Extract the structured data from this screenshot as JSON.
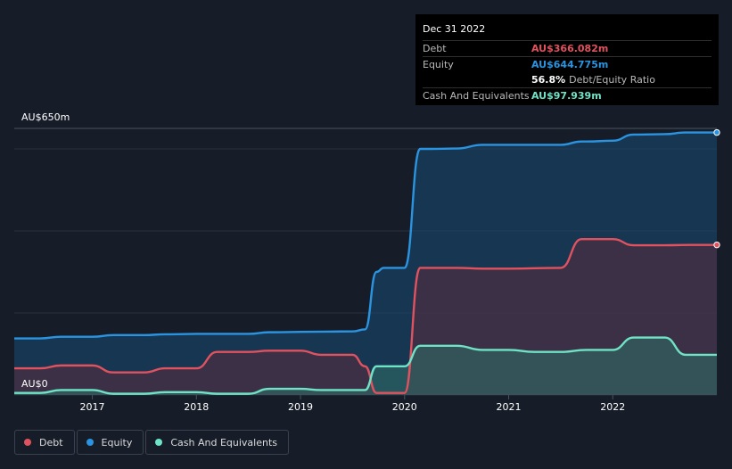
{
  "chart_data": {
    "type": "area",
    "y_axis": {
      "top_label": "AU$650m",
      "bottom_label": "AU$0",
      "ylim": [
        0,
        650
      ],
      "gridlines": [
        0,
        200,
        400,
        600,
        650
      ]
    },
    "x_ticks": [
      "2017",
      "2018",
      "2019",
      "2020",
      "2021",
      "2022"
    ],
    "x_tick_values": [
      2017.0,
      2018.0,
      2019.0,
      2020.0,
      2021.0,
      2022.0
    ],
    "xlim": [
      2016.25,
      2023.0
    ],
    "series": [
      {
        "name": "Equity",
        "color": "#2b94e0",
        "x": [
          2016.25,
          2016.5,
          2016.7,
          2016.75,
          2017.0,
          2017.2,
          2017.25,
          2017.5,
          2017.7,
          2017.75,
          2018.0,
          2018.5,
          2018.7,
          2018.75,
          2019.0,
          2019.5,
          2019.62,
          2019.73,
          2019.8,
          2020.0,
          2020.15,
          2020.25,
          2020.5,
          2020.75,
          2021.0,
          2021.5,
          2021.7,
          2021.75,
          2022.0,
          2022.2,
          2022.25,
          2022.5,
          2022.7,
          2022.75,
          2023.0
        ],
        "values": [
          138,
          138,
          142,
          142,
          142,
          146,
          146,
          146,
          148,
          148,
          149,
          149,
          153,
          153,
          154,
          155,
          160,
          300,
          310,
          310,
          600,
          600,
          601,
          610,
          610,
          610,
          618,
          618,
          620,
          635,
          635,
          636,
          640,
          640,
          640
        ]
      },
      {
        "name": "Debt",
        "color": "#e0525f",
        "x": [
          2016.25,
          2016.5,
          2016.7,
          2016.75,
          2017.0,
          2017.2,
          2017.25,
          2017.5,
          2017.7,
          2017.75,
          2018.0,
          2018.2,
          2018.25,
          2018.5,
          2018.7,
          2018.75,
          2019.0,
          2019.2,
          2019.25,
          2019.5,
          2019.62,
          2019.73,
          2019.8,
          2020.0,
          2020.15,
          2020.25,
          2020.5,
          2020.75,
          2021.0,
          2021.5,
          2021.7,
          2021.75,
          2022.0,
          2022.2,
          2022.25,
          2022.5,
          2022.75,
          2023.0
        ],
        "values": [
          65,
          65,
          72,
          72,
          72,
          55,
          55,
          55,
          65,
          65,
          65,
          105,
          105,
          105,
          108,
          108,
          108,
          98,
          98,
          98,
          70,
          5,
          5,
          5,
          310,
          310,
          310,
          308,
          308,
          310,
          380,
          380,
          380,
          365,
          365,
          365,
          366,
          366
        ]
      },
      {
        "name": "Cash And Equivalents",
        "color": "#6fe3c6",
        "x": [
          2016.25,
          2016.5,
          2016.7,
          2016.75,
          2017.0,
          2017.2,
          2017.25,
          2017.5,
          2017.7,
          2017.75,
          2018.0,
          2018.2,
          2018.25,
          2018.5,
          2018.7,
          2018.75,
          2019.0,
          2019.2,
          2019.25,
          2019.5,
          2019.62,
          2019.73,
          2019.8,
          2020.0,
          2020.15,
          2020.25,
          2020.5,
          2020.75,
          2021.0,
          2021.25,
          2021.5,
          2021.75,
          2022.0,
          2022.2,
          2022.25,
          2022.5,
          2022.7,
          2022.75,
          2023.0
        ],
        "values": [
          5,
          5,
          12,
          12,
          12,
          3,
          3,
          3,
          7,
          7,
          7,
          3,
          3,
          3,
          15,
          15,
          15,
          12,
          12,
          12,
          12,
          70,
          70,
          70,
          120,
          120,
          120,
          110,
          110,
          105,
          105,
          110,
          110,
          140,
          140,
          140,
          98,
          98,
          98
        ]
      }
    ]
  },
  "tooltip": {
    "date": "Dec 31 2022",
    "rows": [
      {
        "label": "Debt",
        "value": "AU$366.082m",
        "color": "#e0525f"
      },
      {
        "label": "Equity",
        "value": "AU$644.775m",
        "color": "#2b94e0"
      }
    ],
    "ratio_value": "56.8%",
    "ratio_label": "Debt/Equity Ratio",
    "cash_label": "Cash And Equivalents",
    "cash_value": "AU$97.939m",
    "cash_color": "#6fe3c6"
  },
  "legend": [
    {
      "label": "Debt",
      "color": "#e0525f"
    },
    {
      "label": "Equity",
      "color": "#2b94e0"
    },
    {
      "label": "Cash And Equivalents",
      "color": "#6fe3c6"
    }
  ]
}
